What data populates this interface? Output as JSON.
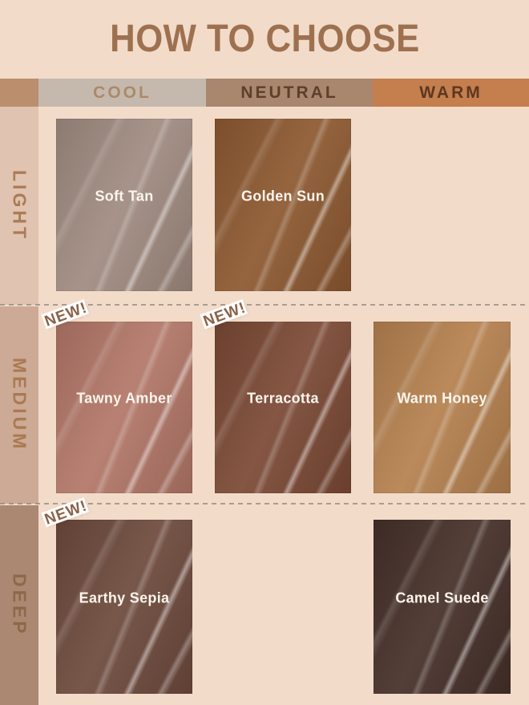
{
  "title": "HOW TO CHOOSE",
  "colors": {
    "background": "#f3dbc9",
    "title": "#9d7150",
    "corner_bg": "#bb8e6e",
    "swatch_label": "#fcf5ec",
    "separator": "#8f8880"
  },
  "columns": [
    {
      "label": "COOL",
      "header_bg": "#c5b9ae",
      "header_text": "#ab8a68"
    },
    {
      "label": "NEUTRAL",
      "header_bg": "#a8876e",
      "header_text": "#5d3f2a"
    },
    {
      "label": "WARM",
      "header_bg": "#c57e4e",
      "header_text": "#5c3820"
    }
  ],
  "rows": [
    {
      "label": "LIGHT",
      "sidebar_bg": "#e0c3b1",
      "label_color": "#ab7c54",
      "cells": [
        {
          "name": "Soft Tan",
          "color": "#a08b80",
          "new": false
        },
        {
          "name": "Golden Sun",
          "color": "#8d5931",
          "new": false
        },
        null
      ]
    },
    {
      "label": "MEDIUM",
      "sidebar_bg": "#cdaa96",
      "label_color": "#a97a52",
      "cells": [
        {
          "name": "Tawny Amber",
          "color": "#b27768",
          "new": true
        },
        {
          "name": "Terracotta",
          "color": "#7b4935",
          "new": true
        },
        {
          "name": "Warm Honey",
          "color": "#b5814f",
          "new": false
        }
      ]
    },
    {
      "label": "DEEP",
      "sidebar_bg": "#aa8872",
      "label_color": "#8d6849",
      "cells": [
        {
          "name": "Earthy Sepia",
          "color": "#6e4a3d",
          "new": true
        },
        null,
        {
          "name": "Camel Suede",
          "color": "#463029",
          "new": false
        }
      ]
    }
  ],
  "new_badge": {
    "label": "NEW!",
    "text_color": "#8a6248",
    "stroke_color": "#ffffff"
  }
}
